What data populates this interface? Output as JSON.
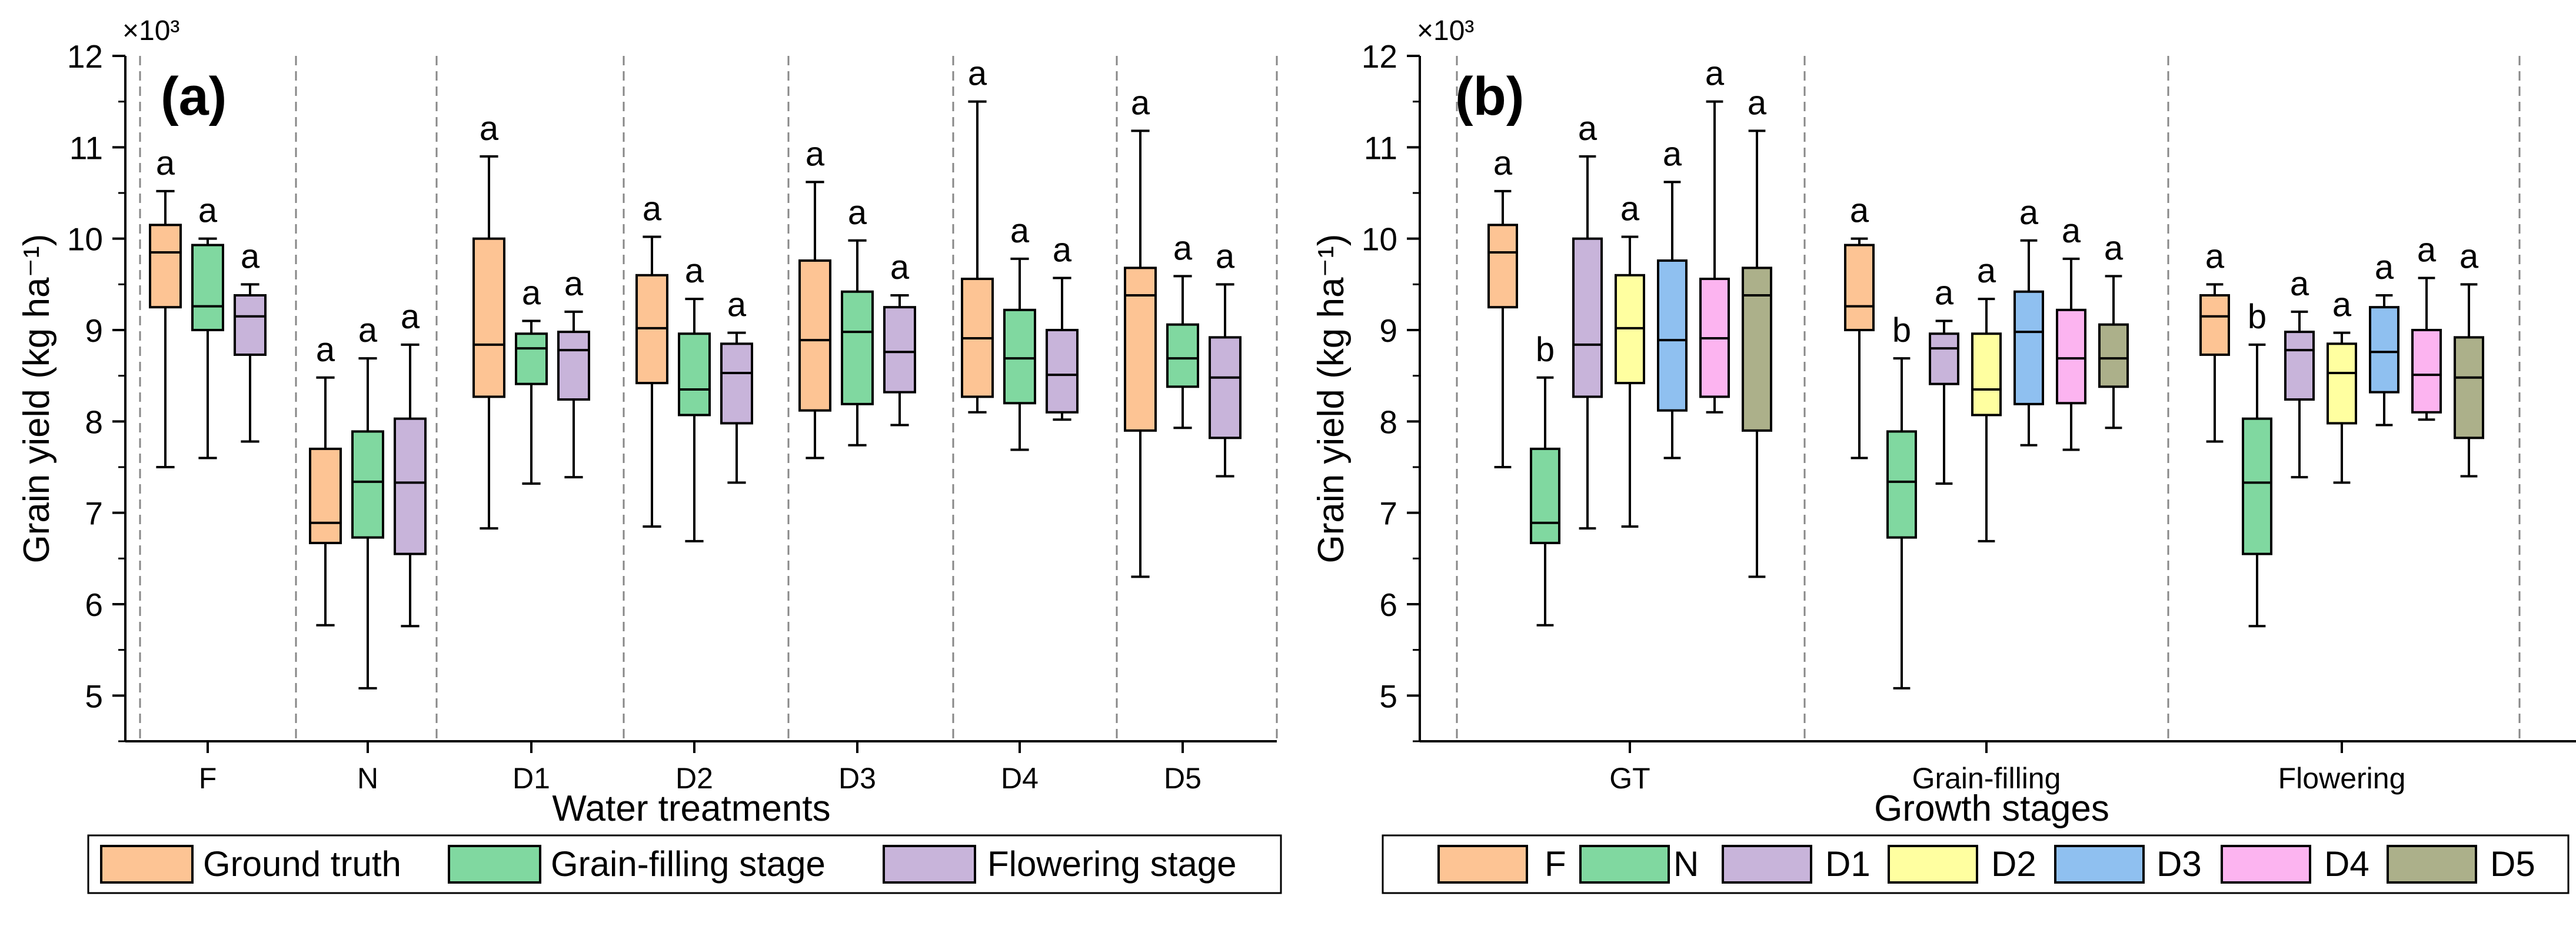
{
  "chart_data": [
    {
      "type": "box",
      "panel_label": "(a)",
      "exponent_label": "×10³",
      "ylabel": "Grain yield (kg ha⁻¹)",
      "xlabel": "Water treatments",
      "ylim": [
        4.5,
        12
      ],
      "yticks": [
        5,
        6,
        7,
        8,
        9,
        10,
        11,
        12
      ],
      "categories": [
        "F",
        "N",
        "D1",
        "D2",
        "D3",
        "D4",
        "D5"
      ],
      "series": [
        {
          "name": "Ground truth",
          "color": "#FDC494",
          "stats": [
            {
              "min": 7.5,
              "q1": 9.25,
              "median": 9.85,
              "q3": 10.15,
              "max": 10.52,
              "label": "a"
            },
            {
              "min": 5.77,
              "q1": 6.67,
              "median": 6.89,
              "q3": 7.7,
              "max": 8.48,
              "label": "a"
            },
            {
              "min": 6.83,
              "q1": 8.27,
              "median": 8.84,
              "q3": 10.0,
              "max": 10.9,
              "label": "a"
            },
            {
              "min": 6.85,
              "q1": 8.42,
              "median": 9.02,
              "q3": 9.6,
              "max": 10.02,
              "label": "a"
            },
            {
              "min": 7.6,
              "q1": 8.12,
              "median": 8.89,
              "q3": 9.76,
              "max": 10.62,
              "label": "a"
            },
            {
              "min": 8.1,
              "q1": 8.27,
              "median": 8.91,
              "q3": 9.56,
              "max": 11.5,
              "label": "a"
            },
            {
              "min": 6.3,
              "q1": 7.9,
              "median": 9.38,
              "q3": 9.68,
              "max": 11.18,
              "label": "a"
            }
          ]
        },
        {
          "name": "Grain-filling stage",
          "color": "#80D8A0",
          "stats": [
            {
              "min": 7.6,
              "q1": 9.0,
              "median": 9.26,
              "q3": 9.93,
              "max": 10.0,
              "label": "a"
            },
            {
              "min": 5.08,
              "q1": 6.73,
              "median": 7.34,
              "q3": 7.89,
              "max": 8.69,
              "label": "a"
            },
            {
              "min": 7.32,
              "q1": 8.41,
              "median": 8.8,
              "q3": 8.96,
              "max": 9.1,
              "label": "a"
            },
            {
              "min": 6.69,
              "q1": 8.07,
              "median": 8.35,
              "q3": 8.96,
              "max": 9.34,
              "label": "a"
            },
            {
              "min": 7.74,
              "q1": 8.19,
              "median": 8.98,
              "q3": 9.42,
              "max": 9.98,
              "label": "a"
            },
            {
              "min": 7.69,
              "q1": 8.2,
              "median": 8.69,
              "q3": 9.22,
              "max": 9.78,
              "label": "a"
            },
            {
              "min": 7.93,
              "q1": 8.38,
              "median": 8.69,
              "q3": 9.06,
              "max": 9.59,
              "label": "a"
            }
          ]
        },
        {
          "name": "Flowering stage",
          "color": "#C8B4DA",
          "stats": [
            {
              "min": 7.78,
              "q1": 8.73,
              "median": 9.15,
              "q3": 9.38,
              "max": 9.5,
              "label": "a"
            },
            {
              "min": 5.76,
              "q1": 6.55,
              "median": 7.33,
              "q3": 8.03,
              "max": 8.84,
              "label": "a"
            },
            {
              "min": 7.39,
              "q1": 8.24,
              "median": 8.78,
              "q3": 8.98,
              "max": 9.2,
              "label": "a"
            },
            {
              "min": 7.33,
              "q1": 7.98,
              "median": 8.53,
              "q3": 8.85,
              "max": 8.97,
              "label": "a"
            },
            {
              "min": 7.96,
              "q1": 8.32,
              "median": 8.76,
              "q3": 9.25,
              "max": 9.38,
              "label": "a"
            },
            {
              "min": 8.02,
              "q1": 8.1,
              "median": 8.51,
              "q3": 9.0,
              "max": 9.57,
              "label": "a"
            },
            {
              "min": 7.4,
              "q1": 7.82,
              "median": 8.48,
              "q3": 8.92,
              "max": 9.5,
              "label": "a"
            }
          ]
        }
      ]
    },
    {
      "type": "box",
      "panel_label": "(b)",
      "exponent_label": "×10³",
      "ylabel": "Grain yield (kg ha⁻¹)",
      "xlabel": "Growth stages",
      "ylim": [
        4.5,
        12
      ],
      "yticks": [
        5,
        6,
        7,
        8,
        9,
        10,
        11,
        12
      ],
      "categories": [
        "GT",
        "Grain-filling",
        "Flowering"
      ],
      "series": [
        {
          "name": "F",
          "color": "#FDC494",
          "stats": [
            {
              "min": 7.5,
              "q1": 9.25,
              "median": 9.85,
              "q3": 10.15,
              "max": 10.52,
              "label": "a"
            },
            {
              "min": 7.6,
              "q1": 9.0,
              "median": 9.26,
              "q3": 9.93,
              "max": 10.0,
              "label": "a"
            },
            {
              "min": 7.78,
              "q1": 8.73,
              "median": 9.15,
              "q3": 9.38,
              "max": 9.5,
              "label": "a"
            }
          ]
        },
        {
          "name": "N",
          "color": "#80D8A0",
          "stats": [
            {
              "min": 5.77,
              "q1": 6.67,
              "median": 6.89,
              "q3": 7.7,
              "max": 8.48,
              "label": "b"
            },
            {
              "min": 5.08,
              "q1": 6.73,
              "median": 7.34,
              "q3": 7.89,
              "max": 8.69,
              "label": "b"
            },
            {
              "min": 5.76,
              "q1": 6.55,
              "median": 7.33,
              "q3": 8.03,
              "max": 8.84,
              "label": "b"
            }
          ]
        },
        {
          "name": "D1",
          "color": "#C8B4DA",
          "stats": [
            {
              "min": 6.83,
              "q1": 8.27,
              "median": 8.84,
              "q3": 10.0,
              "max": 10.9,
              "label": "a"
            },
            {
              "min": 7.32,
              "q1": 8.41,
              "median": 8.8,
              "q3": 8.96,
              "max": 9.1,
              "label": "a"
            },
            {
              "min": 7.39,
              "q1": 8.24,
              "median": 8.78,
              "q3": 8.98,
              "max": 9.2,
              "label": "a"
            }
          ]
        },
        {
          "name": "D2",
          "color": "#FFFFA0",
          "stats": [
            {
              "min": 6.85,
              "q1": 8.42,
              "median": 9.02,
              "q3": 9.6,
              "max": 10.02,
              "label": "a"
            },
            {
              "min": 6.69,
              "q1": 8.07,
              "median": 8.35,
              "q3": 8.96,
              "max": 9.34,
              "label": "a"
            },
            {
              "min": 7.33,
              "q1": 7.98,
              "median": 8.53,
              "q3": 8.85,
              "max": 8.97,
              "label": "a"
            }
          ]
        },
        {
          "name": "D3",
          "color": "#8FC0F0",
          "stats": [
            {
              "min": 7.6,
              "q1": 8.12,
              "median": 8.89,
              "q3": 9.76,
              "max": 10.62,
              "label": "a"
            },
            {
              "min": 7.74,
              "q1": 8.19,
              "median": 8.98,
              "q3": 9.42,
              "max": 9.98,
              "label": "a"
            },
            {
              "min": 7.96,
              "q1": 8.32,
              "median": 8.76,
              "q3": 9.25,
              "max": 9.38,
              "label": "a"
            }
          ]
        },
        {
          "name": "D4",
          "color": "#FCB4F0",
          "stats": [
            {
              "min": 8.1,
              "q1": 8.27,
              "median": 8.91,
              "q3": 9.56,
              "max": 11.5,
              "label": "a"
            },
            {
              "min": 7.69,
              "q1": 8.2,
              "median": 8.69,
              "q3": 9.22,
              "max": 9.78,
              "label": "a"
            },
            {
              "min": 8.02,
              "q1": 8.1,
              "median": 8.51,
              "q3": 9.0,
              "max": 9.57,
              "label": "a"
            }
          ]
        },
        {
          "name": "D5",
          "color": "#ACB08A",
          "stats": [
            {
              "min": 6.3,
              "q1": 7.9,
              "median": 9.38,
              "q3": 9.68,
              "max": 11.18,
              "label": "a"
            },
            {
              "min": 7.93,
              "q1": 8.38,
              "median": 8.69,
              "q3": 9.06,
              "max": 9.59,
              "label": "a"
            },
            {
              "min": 7.4,
              "q1": 7.82,
              "median": 8.48,
              "q3": 8.92,
              "max": 9.5,
              "label": "a"
            }
          ]
        }
      ]
    }
  ]
}
